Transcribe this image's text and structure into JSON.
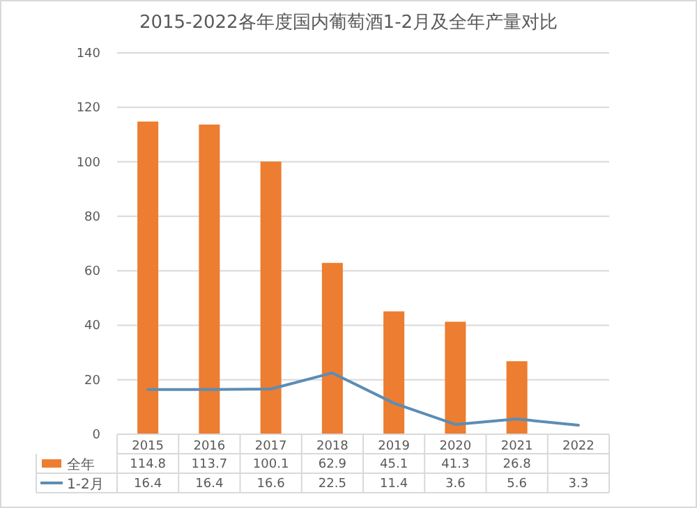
{
  "chart_data": {
    "type": "bar",
    "title": "2015-2022各年度国内葡萄酒1-2月及全年产量对比",
    "categories": [
      "2015",
      "2016",
      "2017",
      "2018",
      "2019",
      "2020",
      "2021",
      "2022"
    ],
    "series": [
      {
        "name": "全年",
        "color": "#ed7d31",
        "values": [
          114.8,
          113.7,
          100.1,
          62.9,
          45.1,
          41.3,
          26.8,
          null
        ]
      },
      {
        "name": "1-2月",
        "type": "line",
        "color": "#5b8db5",
        "values": [
          16.4,
          16.4,
          16.6,
          22.5,
          11.4,
          3.6,
          5.6,
          3.3
        ]
      }
    ],
    "ylim": [
      0,
      140
    ],
    "yticks": [
      0,
      20,
      40,
      60,
      80,
      100,
      120,
      140
    ],
    "grid": "y",
    "legend": "bottom",
    "data_labels": true,
    "marker": "none",
    "line_style": "solid"
  }
}
